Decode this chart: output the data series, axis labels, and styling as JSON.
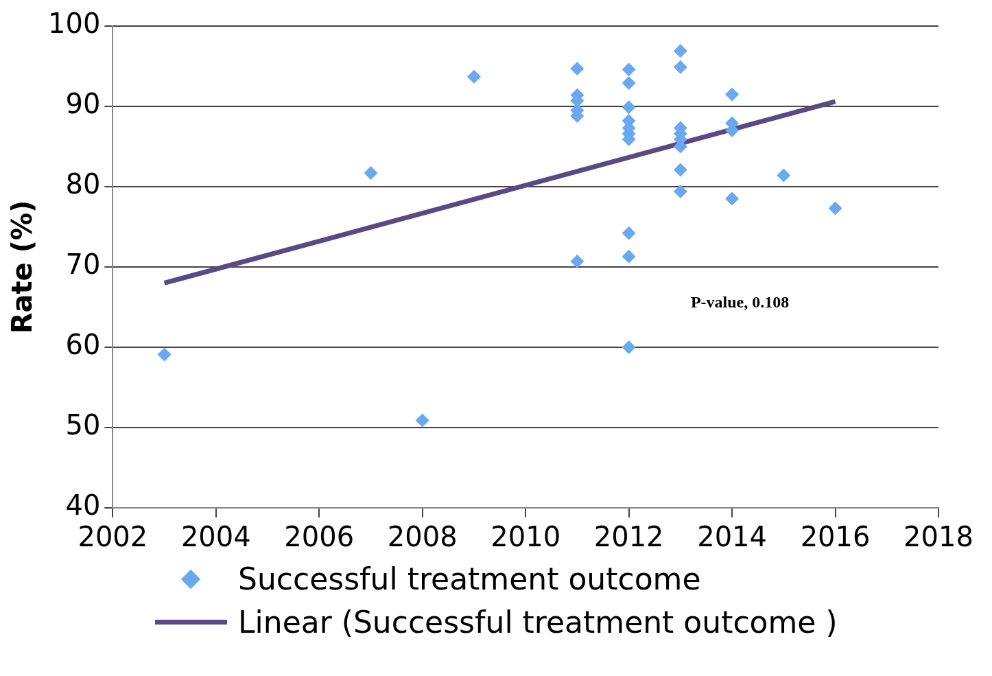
{
  "chart_data": {
    "type": "scatter",
    "ylabel": "Rate (%)",
    "xlim": [
      2002,
      2018
    ],
    "xticks": [
      2002,
      2004,
      2006,
      2008,
      2010,
      2012,
      2014,
      2016,
      2018
    ],
    "ylim": [
      40,
      100
    ],
    "yticks": [
      40,
      50,
      60,
      70,
      80,
      90,
      100
    ],
    "grid": "y",
    "legend": "bottom",
    "annotations": [
      "P-value, 0.108"
    ],
    "series": [
      {
        "name": "Successful treatment outcome",
        "color": "#6aa8f0",
        "marker": "diamond",
        "x": [
          2003,
          2007,
          2008,
          2009,
          2011,
          2011,
          2011,
          2011,
          2011,
          2011,
          2012,
          2012,
          2012,
          2012,
          2012,
          2012,
          2012,
          2012,
          2012,
          2012,
          2013,
          2013,
          2013,
          2013,
          2013,
          2013,
          2013,
          2013,
          2014,
          2014,
          2014,
          2014,
          2015,
          2016
        ],
        "values": [
          59.1,
          81.7,
          50.9,
          93.7,
          94.7,
          91.4,
          90.7,
          89.5,
          88.8,
          70.7,
          94.6,
          92.9,
          89.9,
          88.2,
          87.3,
          86.6,
          85.9,
          74.2,
          71.3,
          60.0,
          96.9,
          94.9,
          87.3,
          86.6,
          85.9,
          85.0,
          82.1,
          79.4,
          91.5,
          87.9,
          87.0,
          78.5,
          81.4,
          77.3
        ]
      },
      {
        "name": "Linear (Successful treatment outcome )",
        "color": "#584a85",
        "type": "line",
        "marker": "none",
        "x": [
          2003,
          2016
        ],
        "values": [
          68.0,
          90.6
        ]
      }
    ]
  }
}
